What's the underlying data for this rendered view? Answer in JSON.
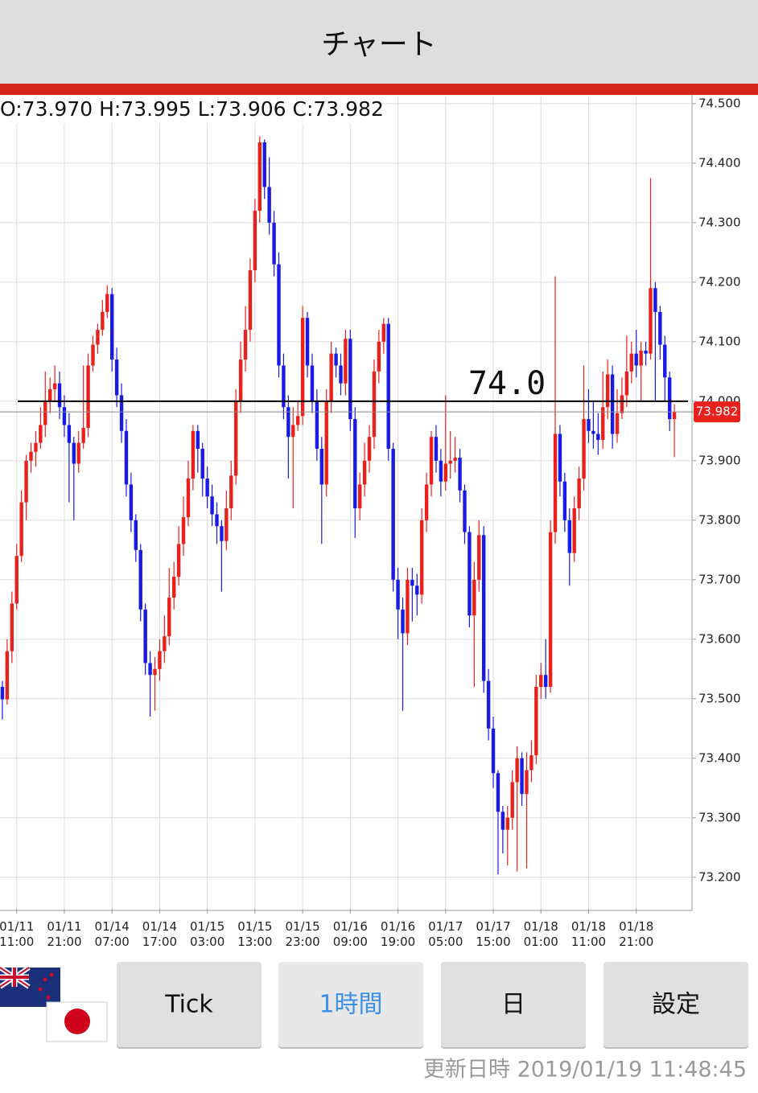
{
  "header": {
    "title": "チャート"
  },
  "chart_data": {
    "type": "candlestick",
    "ohlc_label": "O:73.970 H:73.995 L:73.906 C:73.982",
    "open": [
      73.52,
      73.499,
      73.58,
      73.66,
      73.74,
      73.83,
      73.9,
      73.915,
      73.93,
      73.96,
      74.0,
      74.02,
      74.03,
      73.99,
      73.96,
      73.93,
      73.895,
      73.93,
      73.955,
      74.06,
      74.095,
      74.12,
      74.15,
      74.18,
      74.07,
      74.01,
      73.95,
      73.86,
      73.8,
      73.75,
      73.65,
      73.56,
      73.54,
      73.55,
      73.58,
      73.605,
      73.67,
      73.705,
      73.76,
      73.805,
      73.87,
      73.95,
      73.92,
      73.87,
      73.84,
      73.81,
      73.79,
      73.765,
      73.82,
      73.875,
      74.0,
      74.07,
      74.12,
      74.22,
      74.32,
      74.435,
      74.36,
      74.3,
      74.23,
      74.06,
      73.99,
      73.94,
      73.96,
      73.975,
      74.14,
      74.06,
      74.0,
      73.92,
      73.86,
      74.0,
      74.08,
      74.06,
      74.03,
      74.105,
      73.97,
      73.82,
      73.86,
      73.9,
      73.94,
      74.05,
      74.1,
      74.13,
      73.92,
      73.7,
      73.65,
      73.61,
      73.7,
      73.69,
      73.675,
      73.8,
      73.86,
      73.94,
      73.9,
      73.865,
      73.895,
      73.9,
      73.905,
      73.85,
      73.78,
      73.64,
      73.7,
      73.775,
      73.53,
      73.45,
      73.375,
      73.31,
      73.28,
      73.3,
      73.36,
      73.4,
      73.34,
      73.38,
      73.405,
      73.52,
      73.54,
      73.52,
      73.78,
      73.945,
      73.865,
      73.8,
      73.745,
      73.82,
      73.87,
      73.97,
      73.95,
      73.945,
      73.935,
      73.99,
      74.045,
      73.945,
      73.98,
      74.01,
      74.05,
      74.08,
      74.06,
      74.085,
      74.08,
      74.19,
      74.15,
      74.095,
      74.04,
      73.97
    ],
    "high": [
      73.53,
      73.6,
      73.68,
      73.76,
      73.85,
      73.91,
      73.93,
      73.95,
      73.99,
      74.05,
      74.04,
      74.06,
      74.05,
      74.01,
      73.98,
      73.94,
      73.95,
      74.06,
      74.08,
      74.11,
      74.13,
      74.17,
      74.195,
      74.19,
      74.09,
      74.03,
      73.97,
      73.88,
      73.81,
      73.76,
      73.66,
      73.58,
      73.57,
      73.6,
      73.64,
      73.72,
      73.73,
      73.79,
      73.84,
      73.9,
      73.96,
      73.96,
      73.93,
      73.89,
      73.86,
      73.83,
      73.8,
      73.85,
      73.9,
      74.02,
      74.1,
      74.16,
      74.24,
      74.34,
      74.445,
      74.44,
      74.41,
      74.32,
      74.25,
      74.08,
      74.01,
      73.99,
      74.0,
      74.16,
      74.15,
      74.08,
      74.02,
      73.94,
      74.02,
      74.1,
      74.09,
      74.08,
      74.12,
      74.12,
      73.99,
      73.88,
      73.93,
      73.96,
      74.07,
      74.12,
      74.14,
      74.14,
      73.93,
      73.72,
      73.67,
      73.72,
      73.72,
      73.71,
      73.82,
      73.88,
      73.95,
      73.96,
      73.92,
      74.01,
      73.95,
      73.94,
      73.92,
      73.86,
      73.79,
      73.73,
      73.8,
      73.79,
      73.55,
      73.47,
      73.38,
      73.32,
      73.32,
      73.38,
      73.42,
      73.41,
      73.41,
      73.43,
      73.54,
      73.56,
      73.6,
      73.8,
      74.21,
      73.96,
      73.88,
      73.82,
      73.84,
      73.89,
      74.06,
      74.02,
      74.0,
      73.98,
      74.05,
      74.07,
      74.06,
      74.02,
      74.04,
      74.11,
      74.1,
      74.12,
      74.1,
      74.1,
      74.375,
      74.2,
      74.16,
      74.11,
      74.05,
      73.995
    ],
    "low": [
      73.465,
      73.49,
      73.56,
      73.65,
      73.73,
      73.8,
      73.88,
      73.89,
      73.92,
      73.94,
      73.98,
      74.0,
      73.97,
      73.94,
      73.83,
      73.8,
      73.88,
      73.92,
      73.94,
      74.05,
      74.08,
      74.11,
      74.14,
      74.05,
      73.99,
      73.93,
      73.84,
      73.78,
      73.73,
      73.63,
      73.54,
      73.47,
      73.48,
      73.53,
      73.56,
      73.59,
      73.65,
      73.69,
      73.74,
      73.79,
      73.85,
      73.88,
      73.84,
      73.82,
      73.79,
      73.76,
      73.68,
      73.75,
      73.8,
      73.86,
      73.98,
      74.05,
      74.1,
      74.2,
      74.3,
      74.34,
      74.28,
      74.21,
      74.04,
      73.97,
      73.87,
      73.82,
      73.95,
      73.96,
      74.04,
      73.98,
      73.9,
      73.76,
      73.84,
      73.98,
      74.04,
      74.01,
      74.01,
      73.95,
      73.77,
      73.8,
      73.84,
      73.88,
      73.92,
      74.03,
      74.08,
      73.9,
      73.68,
      73.6,
      73.48,
      73.59,
      73.63,
      73.64,
      73.66,
      73.78,
      73.84,
      73.88,
      73.84,
      73.85,
      73.87,
      73.88,
      73.83,
      73.76,
      73.62,
      73.52,
      73.68,
      73.51,
      73.43,
      73.35,
      73.205,
      73.24,
      73.22,
      73.28,
      73.21,
      73.32,
      73.215,
      73.36,
      73.39,
      73.5,
      73.5,
      73.51,
      73.76,
      73.84,
      73.78,
      73.69,
      73.73,
      73.8,
      73.85,
      73.93,
      73.92,
      73.91,
      73.92,
      73.97,
      73.92,
      73.93,
      73.97,
      73.99,
      74.03,
      74.04,
      74.0,
      74.06,
      74.07,
      74.0,
      74.07,
      74.0,
      73.95,
      73.906
    ],
    "close": [
      73.499,
      73.58,
      73.66,
      73.74,
      73.83,
      73.9,
      73.915,
      73.93,
      73.96,
      74.0,
      74.02,
      74.03,
      73.99,
      73.96,
      73.93,
      73.895,
      73.93,
      73.955,
      74.06,
      74.095,
      74.12,
      74.15,
      74.18,
      74.07,
      74.01,
      73.95,
      73.86,
      73.8,
      73.75,
      73.65,
      73.56,
      73.54,
      73.55,
      73.58,
      73.605,
      73.67,
      73.705,
      73.76,
      73.805,
      73.87,
      73.95,
      73.92,
      73.87,
      73.84,
      73.81,
      73.79,
      73.765,
      73.82,
      73.875,
      74.0,
      74.07,
      74.12,
      74.22,
      74.32,
      74.435,
      74.36,
      74.3,
      74.23,
      74.06,
      73.99,
      73.94,
      73.96,
      73.975,
      74.14,
      74.06,
      74.0,
      73.92,
      73.86,
      74.0,
      74.08,
      74.06,
      74.03,
      74.105,
      73.97,
      73.82,
      73.86,
      73.9,
      73.94,
      74.05,
      74.1,
      74.13,
      73.92,
      73.7,
      73.65,
      73.61,
      73.7,
      73.69,
      73.675,
      73.8,
      73.86,
      73.94,
      73.9,
      73.865,
      73.895,
      73.9,
      73.905,
      73.85,
      73.78,
      73.64,
      73.7,
      73.775,
      73.53,
      73.45,
      73.375,
      73.31,
      73.28,
      73.3,
      73.36,
      73.4,
      73.34,
      73.38,
      73.405,
      73.52,
      73.54,
      73.52,
      73.78,
      73.945,
      73.865,
      73.8,
      73.745,
      73.82,
      73.87,
      73.97,
      73.95,
      73.945,
      73.935,
      73.99,
      74.045,
      73.945,
      73.98,
      74.01,
      74.05,
      74.08,
      74.06,
      74.085,
      74.08,
      74.19,
      74.15,
      74.095,
      74.04,
      73.97,
      73.982
    ],
    "up_color": "#e8211c",
    "down_color": "#1a1ae6",
    "xlim": [
      -0.5,
      144.7
    ],
    "ylim": [
      73.147,
      74.512
    ],
    "yticks": [
      {
        "value": 74.5,
        "label": "74.500"
      },
      {
        "value": 74.4,
        "label": "74.400"
      },
      {
        "value": 74.3,
        "label": "74.300"
      },
      {
        "value": 74.2,
        "label": "74.200"
      },
      {
        "value": 74.1,
        "label": "74.100"
      },
      {
        "value": 74.0,
        "label": "74.000"
      },
      {
        "value": 73.9,
        "label": "73.900"
      },
      {
        "value": 73.8,
        "label": "73.800"
      },
      {
        "value": 73.7,
        "label": "73.700"
      },
      {
        "value": 73.6,
        "label": "73.600"
      },
      {
        "value": 73.5,
        "label": "73.500"
      },
      {
        "value": 73.4,
        "label": "73.400"
      },
      {
        "value": 73.3,
        "label": "73.300"
      },
      {
        "value": 73.2,
        "label": "73.200"
      }
    ],
    "xticks": [
      {
        "value": 3,
        "label": "01/11 11:00"
      },
      {
        "value": 13,
        "label": "01/11 21:00"
      },
      {
        "value": 23,
        "label": "01/14 07:00"
      },
      {
        "value": 33,
        "label": "01/14 17:00"
      },
      {
        "value": 43,
        "label": "01/15 03:00"
      },
      {
        "value": 53,
        "label": "01/15 13:00"
      },
      {
        "value": 63,
        "label": "01/15 23:00"
      },
      {
        "value": 73,
        "label": "01/16 09:00"
      },
      {
        "value": 83,
        "label": "01/16 19:00"
      },
      {
        "value": 93,
        "label": "01/17 05:00"
      },
      {
        "value": 103,
        "label": "01/17 15:00"
      },
      {
        "value": 113,
        "label": "01/18 01:00"
      },
      {
        "value": 123,
        "label": "01/18 11:00"
      },
      {
        "value": 133,
        "label": "01/18 21:00"
      }
    ],
    "grid": true,
    "reference_line": {
      "value": 74.0,
      "label": "74.0"
    },
    "last_price": 73.982
  },
  "buttons": [
    "Tick",
    "1時間",
    "日",
    "設定"
  ],
  "selected_button": 1,
  "footer": {
    "updated": "更新日時 2019/01/19 11:48:45"
  }
}
